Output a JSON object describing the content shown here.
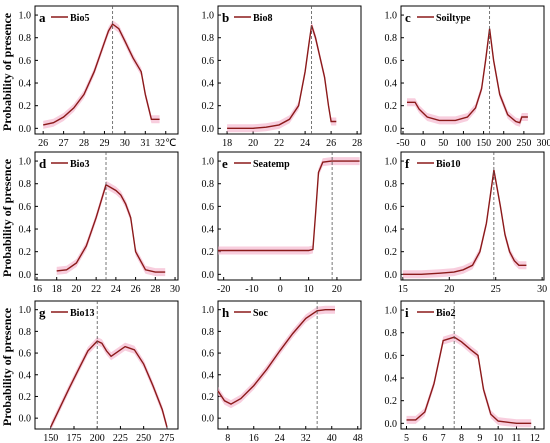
{
  "figure": {
    "ylabel": "Probability of presence",
    "curve_color": "#8b1a1a",
    "band_color": "#f2a6c2",
    "ref_line_color": "#555555"
  },
  "chart_data": [
    {
      "panel": "a",
      "legend": "Bio5",
      "type": "line",
      "xlim": [
        25.6,
        32.6
      ],
      "ylim": [
        -0.05,
        1.08
      ],
      "xticks": [
        26,
        27,
        28,
        29,
        30,
        31,
        32
      ],
      "xtick_labels": [
        "26",
        "27",
        "28",
        "29",
        "30",
        "31",
        "32℃"
      ],
      "yticks": [
        0.0,
        0.2,
        0.4,
        0.6,
        0.8,
        1.0
      ],
      "ref_x": 29.4,
      "x": [
        26.0,
        26.5,
        27.0,
        27.5,
        28.0,
        28.5,
        29.0,
        29.2,
        29.4,
        29.7,
        30.0,
        30.4,
        30.8,
        31.0,
        31.3,
        31.7
      ],
      "y": [
        0.03,
        0.05,
        0.1,
        0.18,
        0.3,
        0.5,
        0.76,
        0.86,
        0.92,
        0.88,
        0.77,
        0.62,
        0.5,
        0.3,
        0.08,
        0.08
      ]
    },
    {
      "panel": "b",
      "legend": "Bio8",
      "type": "line",
      "xlim": [
        17.3,
        28.3
      ],
      "ylim": [
        -0.05,
        1.08
      ],
      "xticks": [
        18,
        20,
        22,
        24,
        26,
        28
      ],
      "xtick_labels": [
        "18",
        "20",
        "22",
        "24",
        "26",
        "28"
      ],
      "yticks": [
        0.0,
        0.2,
        0.4,
        0.6,
        0.8,
        1.0
      ],
      "ref_x": 24.5,
      "x": [
        18.0,
        20.0,
        21.0,
        22.0,
        22.8,
        23.5,
        24.0,
        24.3,
        24.5,
        24.8,
        25.2,
        25.5,
        25.8,
        26.0,
        26.4
      ],
      "y": [
        0.0,
        0.0,
        0.01,
        0.03,
        0.08,
        0.2,
        0.5,
        0.75,
        0.91,
        0.8,
        0.6,
        0.45,
        0.2,
        0.06,
        0.06
      ]
    },
    {
      "panel": "c",
      "legend": "Soiltype",
      "type": "line",
      "xlim": [
        -55,
        300
      ],
      "ylim": [
        -0.05,
        1.08
      ],
      "xticks": [
        -50,
        0,
        50,
        100,
        150,
        200,
        250,
        300
      ],
      "xtick_labels": [
        "-50",
        "0",
        "50",
        "100",
        "150",
        "200",
        "250",
        "300"
      ],
      "yticks": [
        0.0,
        0.2,
        0.4,
        0.6,
        0.8,
        1.0
      ],
      "ref_x": 165,
      "x": [
        -40,
        -20,
        -10,
        10,
        40,
        80,
        110,
        130,
        145,
        155,
        165,
        175,
        190,
        210,
        230,
        240,
        245,
        260
      ],
      "y": [
        0.23,
        0.23,
        0.17,
        0.1,
        0.07,
        0.07,
        0.1,
        0.18,
        0.35,
        0.6,
        0.88,
        0.6,
        0.3,
        0.12,
        0.06,
        0.05,
        0.1,
        0.1
      ]
    },
    {
      "panel": "d",
      "legend": "Bio3",
      "type": "line",
      "xlim": [
        15.8,
        30.3
      ],
      "ylim": [
        -0.05,
        1.08
      ],
      "xticks": [
        16,
        18,
        20,
        22,
        24,
        26,
        28,
        30
      ],
      "xtick_labels": [
        "16",
        "18",
        "20",
        "22",
        "24",
        "26",
        "28",
        "30"
      ],
      "yticks": [
        0.0,
        0.2,
        0.4,
        0.6,
        0.8,
        1.0
      ],
      "ref_x": 23.0,
      "x": [
        18.0,
        19.0,
        20.0,
        21.0,
        22.0,
        23.0,
        24.0,
        24.5,
        25.0,
        25.5,
        26.0,
        27.0,
        28.0,
        29.0
      ],
      "y": [
        0.03,
        0.04,
        0.1,
        0.25,
        0.5,
        0.79,
        0.74,
        0.7,
        0.62,
        0.5,
        0.2,
        0.04,
        0.02,
        0.02
      ]
    },
    {
      "panel": "e",
      "legend": "Seatemp",
      "type": "line",
      "xlim": [
        -22,
        28.5
      ],
      "ylim": [
        -0.05,
        1.08
      ],
      "xticks": [
        -20,
        -10,
        0,
        10,
        20
      ],
      "xtick_labels": [
        "-20",
        "-10",
        "0",
        "10",
        "20"
      ],
      "yticks": [
        0.0,
        0.2,
        0.4,
        0.6,
        0.8,
        1.0
      ],
      "ref_x": 18.3,
      "x": [
        -22,
        -10,
        0,
        10,
        11.5,
        12.5,
        13.5,
        15,
        18,
        28
      ],
      "y": [
        0.21,
        0.21,
        0.21,
        0.21,
        0.22,
        0.55,
        0.9,
        0.99,
        1.0,
        1.0
      ]
    },
    {
      "panel": "f",
      "legend": "Bio10",
      "type": "line",
      "xlim": [
        14.8,
        30.2
      ],
      "ylim": [
        -0.05,
        1.08
      ],
      "xticks": [
        15,
        20,
        25,
        30
      ],
      "xtick_labels": [
        "15",
        "20",
        "25",
        "30"
      ],
      "yticks": [
        0.0,
        0.2,
        0.4,
        0.6,
        0.8,
        1.0
      ],
      "ref_x": 24.8,
      "x": [
        15.0,
        17.0,
        19.0,
        20.5,
        21.5,
        22.5,
        23.3,
        24.0,
        24.8,
        25.5,
        26.0,
        26.5,
        27.0,
        27.5,
        28.3
      ],
      "y": [
        0.0,
        0.0,
        0.01,
        0.02,
        0.04,
        0.08,
        0.2,
        0.45,
        0.92,
        0.6,
        0.35,
        0.2,
        0.12,
        0.08,
        0.08
      ]
    },
    {
      "panel": "g",
      "legend": "Bio13",
      "type": "line",
      "xlim": [
        133,
        287
      ],
      "ylim": [
        -0.1,
        1.08
      ],
      "xticks": [
        150,
        175,
        200,
        225,
        250,
        275
      ],
      "xtick_labels": [
        "150",
        "175",
        "200",
        "225",
        "250",
        "275"
      ],
      "yticks": [
        0.0,
        0.2,
        0.4,
        0.6,
        0.8,
        1.0
      ],
      "ref_x": 200,
      "x": [
        150,
        160,
        170,
        180,
        190,
        200,
        205,
        210,
        215,
        220,
        230,
        240,
        250,
        260,
        270,
        275
      ],
      "y": [
        -0.08,
        0.1,
        0.28,
        0.45,
        0.62,
        0.71,
        0.69,
        0.62,
        0.57,
        0.6,
        0.66,
        0.63,
        0.5,
        0.3,
        0.08,
        -0.08
      ]
    },
    {
      "panel": "h",
      "legend": "Soc",
      "type": "line",
      "xlim": [
        5,
        49
      ],
      "ylim": [
        -0.1,
        1.08
      ],
      "xticks": [
        8,
        16,
        24,
        32,
        40,
        48
      ],
      "xtick_labels": [
        "8",
        "16",
        "24",
        "32",
        "40",
        "48"
      ],
      "yticks": [
        0.0,
        0.2,
        0.4,
        0.6,
        0.8,
        1.0
      ],
      "ref_x": 35.5,
      "x": [
        5,
        7,
        9,
        12,
        16,
        20,
        24,
        28,
        32,
        35.5,
        38,
        41
      ],
      "y": [
        0.25,
        0.16,
        0.13,
        0.18,
        0.3,
        0.45,
        0.62,
        0.78,
        0.92,
        0.99,
        1.0,
        1.0
      ]
    },
    {
      "panel": "i",
      "legend": "Bio2",
      "type": "line",
      "xlim": [
        4.7,
        12.5
      ],
      "ylim": [
        -0.05,
        1.08
      ],
      "xticks": [
        5,
        6,
        7,
        8,
        9,
        10,
        11,
        12
      ],
      "xtick_labels": [
        "5",
        "6",
        "7",
        "8",
        "9",
        "10",
        "11",
        "12"
      ],
      "yticks": [
        0.0,
        0.2,
        0.4,
        0.6,
        0.8,
        1.0
      ],
      "ref_x": 7.6,
      "x": [
        5.0,
        5.5,
        6.0,
        6.5,
        7.0,
        7.6,
        8.0,
        8.5,
        8.9,
        9.2,
        9.6,
        10.0,
        10.5,
        11.0,
        11.8
      ],
      "y": [
        0.03,
        0.03,
        0.1,
        0.35,
        0.73,
        0.76,
        0.72,
        0.65,
        0.6,
        0.3,
        0.08,
        0.02,
        0.01,
        0.0,
        0.0
      ]
    }
  ]
}
